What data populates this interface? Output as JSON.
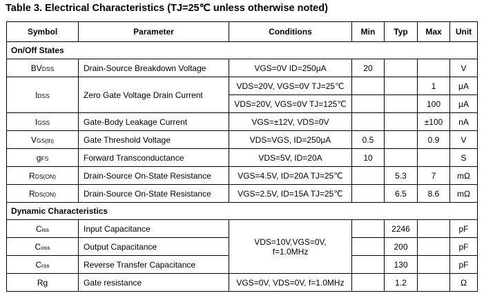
{
  "caption": "Table 3.   Electrical Characteristics (TJ=25℃  unless otherwise noted)",
  "headers": {
    "symbol": "Symbol",
    "parameter": "Parameter",
    "conditions": "Conditions",
    "min": "Min",
    "typ": "Typ",
    "max": "Max",
    "unit": "Unit"
  },
  "sections": {
    "onoff": "On/Off States",
    "dynamic": "Dynamic Characteristics"
  },
  "rows": {
    "bvdss": {
      "symbol_main": "BV",
      "symbol_sub": "DSS",
      "parameter": "Drain-Source Breakdown Voltage",
      "conditions": "VGS=0V ID=250μA",
      "min": "20",
      "typ": "",
      "max": "",
      "unit": "V"
    },
    "idss": {
      "symbol_main": "I",
      "symbol_sub": "DSS",
      "parameter": "Zero Gate Voltage Drain Current",
      "conditions_a": "VDS=20V, VGS=0V TJ=25℃",
      "max_a": "1",
      "unit_a": "μA",
      "conditions_b": "VDS=20V, VGS=0V TJ=125℃",
      "max_b": "100",
      "unit_b": "μA"
    },
    "igss": {
      "symbol_main": "I",
      "symbol_sub": "GSS",
      "parameter": "Gate-Body Leakage Current",
      "conditions": "VGS=±12V, VDS=0V",
      "min": "",
      "typ": "",
      "max": "±100",
      "unit": "nA"
    },
    "vgsth": {
      "symbol_main": "V",
      "symbol_sub": "GS(th)",
      "parameter": "Gate Threshold Voltage",
      "conditions": "VDS=VGS, ID=250μA",
      "min": "0.5",
      "typ": "",
      "max": "0.9",
      "unit": "V"
    },
    "gfs": {
      "symbol_main": "g",
      "symbol_sub": "FS",
      "parameter": "Forward Transconductance",
      "conditions": "VDS=5V, ID=20A",
      "min": "10",
      "typ": "",
      "max": "",
      "unit": "S"
    },
    "rdson1": {
      "symbol_main": "R",
      "symbol_sub": "DS(ON)",
      "parameter": "Drain-Source On-State Resistance",
      "conditions": "VGS=4.5V, ID=20A TJ=25℃",
      "min": "",
      "typ": "5.3",
      "max": "7",
      "unit": "mΩ"
    },
    "rdson2": {
      "symbol_main": "R",
      "symbol_sub": "DS(ON)",
      "parameter": "Drain-Source On-State Resistance",
      "conditions": "VGS=2.5V, ID=15A TJ=25℃",
      "min": "",
      "typ": "6.5",
      "max": "8.6",
      "unit": "mΩ"
    },
    "ciss": {
      "symbol_main": "C",
      "symbol_sub": "iss",
      "parameter": "Input Capacitance",
      "typ": "2246",
      "unit": "pF"
    },
    "coss": {
      "symbol_main": "C",
      "symbol_sub": "oss",
      "parameter": "Output Capacitance",
      "typ": "200",
      "unit": "pF"
    },
    "crss": {
      "symbol_main": "C",
      "symbol_sub": "rss",
      "parameter": "Reverse Transfer Capacitance",
      "typ": "130",
      "unit": "pF"
    },
    "cap_conditions_line1": "VDS=10V,VGS=0V,",
    "cap_conditions_line2": "f=1.0MHz",
    "rg": {
      "symbol_main": "Rg",
      "parameter": "Gate resistance",
      "conditions": "VGS=0V, VDS=0V, f=1.0MHz",
      "typ": "1.2",
      "unit": "Ω"
    }
  }
}
